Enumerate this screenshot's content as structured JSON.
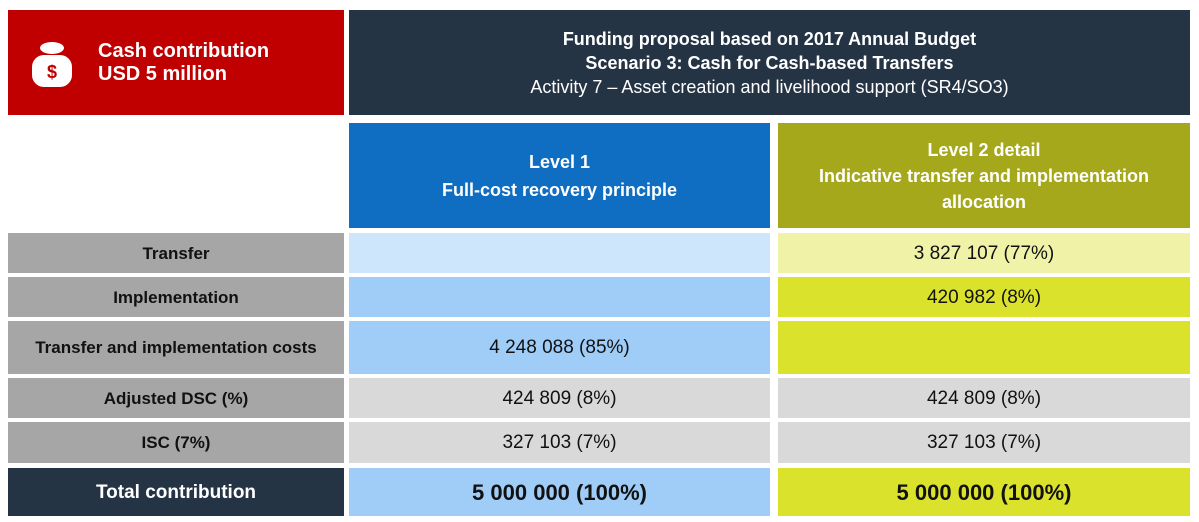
{
  "header": {
    "contribution_title": "Cash contribution",
    "contribution_amount": "USD 5 million",
    "title_lines": [
      "Funding proposal based on 2017 Annual Budget",
      "Scenario 3: Cash for Cash-based Transfers"
    ],
    "subtitle": "Activity 7 – Asset creation and livelihood support (SR4/SO3)"
  },
  "columns": [
    {
      "lines": [
        "Level 1",
        "Full-cost recovery principle"
      ]
    },
    {
      "lines": [
        "Level 2 detail",
        "Indicative transfer and implementation allocation"
      ]
    }
  ],
  "table": {
    "rows": [
      {
        "label": "Transfer",
        "level1": null,
        "level2": "3 827 107 (77%)"
      },
      {
        "label": "Implementation",
        "level1": null,
        "level2": "420 982 (8%)"
      },
      {
        "label": "Transfer and implementation costs",
        "level1": "4 248 088 (85%)",
        "level2": null
      },
      {
        "label": "Adjusted DSC (%)",
        "level1": "424 809 (8%)",
        "level2": "424 809 (8%)"
      },
      {
        "label": "ISC (7%)",
        "level1": "327 103 (7%)",
        "level2": "327 103 (7%)"
      },
      {
        "label": "Total contribution",
        "level1": "5 000 000 (100%)",
        "level2": "5 000 000 (100%)"
      }
    ]
  }
}
